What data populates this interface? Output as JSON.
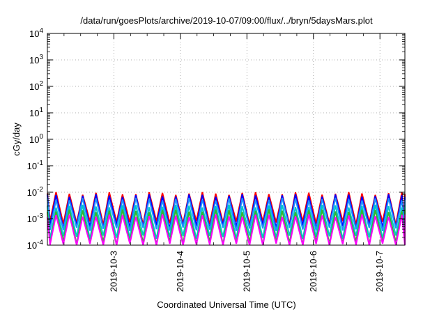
{
  "chart_data": {
    "type": "line",
    "title": "/data/run/goesPlots/archive/2019-10-07/09:00/flux/../bryn/5daysMars.plot",
    "xlabel": "Coordinated Universal Time (UTC)",
    "ylabel": "cGy/day",
    "yscale": "log",
    "ylim": [
      0.0001,
      10000
    ],
    "xlim": [
      "2019-10-02T00:00",
      "2019-10-07T09:00"
    ],
    "grid": "dotted",
    "legend": "none",
    "y_ticks": [
      {
        "value": 10000,
        "base": "10",
        "exp": "4"
      },
      {
        "value": 1000,
        "base": "10",
        "exp": "3"
      },
      {
        "value": 100,
        "base": "10",
        "exp": "2"
      },
      {
        "value": 10,
        "base": "10",
        "exp": "1"
      },
      {
        "value": 1,
        "base": "10",
        "exp": "0"
      },
      {
        "value": 0.1,
        "base": "10",
        "exp": "-1"
      },
      {
        "value": 0.01,
        "base": "10",
        "exp": "-2"
      },
      {
        "value": 0.001,
        "base": "10",
        "exp": "-3"
      },
      {
        "value": 0.0001,
        "base": "10",
        "exp": "-4"
      }
    ],
    "x_ticks": [
      {
        "value": "2019-10-03T00:00",
        "label": "2019-10-3"
      },
      {
        "value": "2019-10-04T00:00",
        "label": "2019-10-4"
      },
      {
        "value": "2019-10-05T00:00",
        "label": "2019-10-5"
      },
      {
        "value": "2019-10-06T00:00",
        "label": "2019-10-6"
      },
      {
        "value": "2019-10-07T00:00",
        "label": "2019-10-7"
      }
    ],
    "sawtooth_period_hours": 4.8,
    "series": [
      {
        "color": "#ff0000",
        "peak": 0.009,
        "trough": 0.0007
      },
      {
        "color": "#0000ff",
        "peak": 0.0075,
        "trough": 0.0005
      },
      {
        "color": "#1e90ff",
        "peak": 0.0055,
        "trough": 0.0004
      },
      {
        "color": "#00c8c8",
        "peak": 0.003,
        "trough": 0.0002
      },
      {
        "color": "#32b432",
        "peak": 0.002,
        "trough": 0.00012
      },
      {
        "color": "#ff00ff",
        "peak": 0.0013,
        "trough": 0.0001
      }
    ]
  }
}
